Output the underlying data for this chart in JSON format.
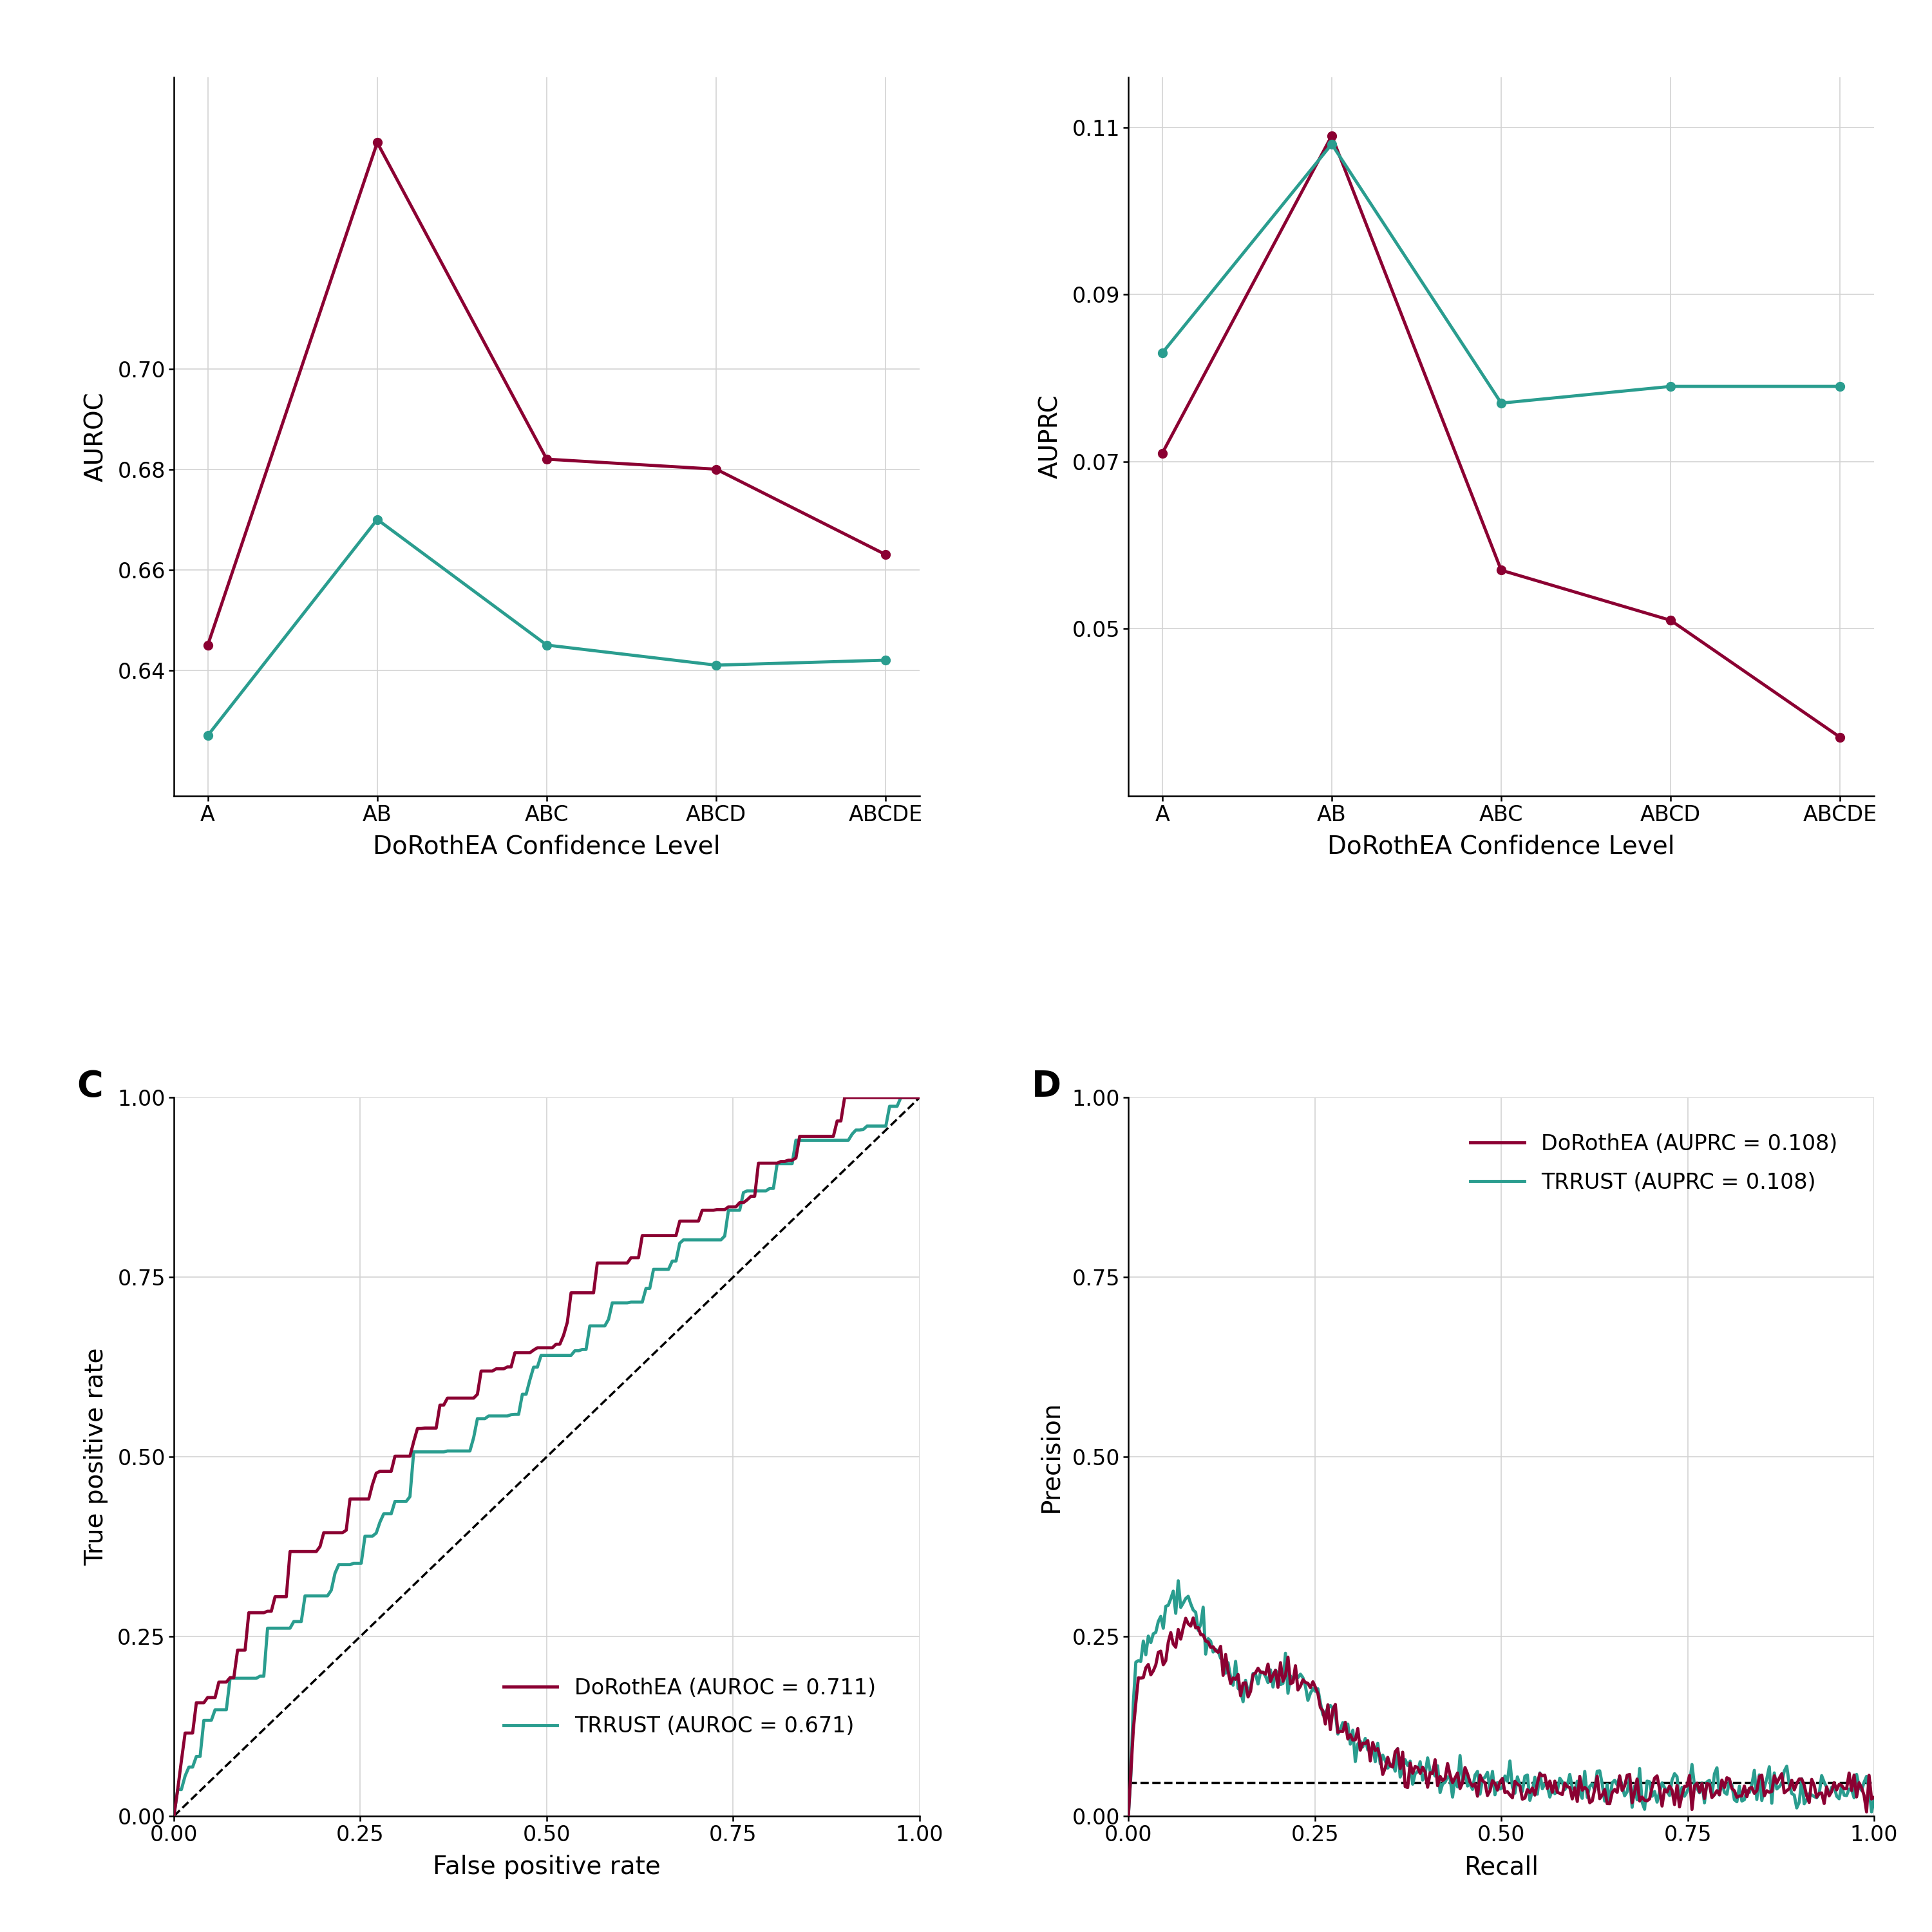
{
  "panel_A": {
    "categories": [
      "A",
      "AB",
      "ABC",
      "ABCD",
      "ABCDE"
    ],
    "dorothea": [
      0.645,
      0.745,
      0.682,
      0.68,
      0.663
    ],
    "trrust": [
      0.627,
      0.67,
      0.645,
      0.641,
      0.642
    ],
    "ylabel": "AUROC",
    "xlabel": "DoRothEA Confidence Level",
    "ylim": [
      0.615,
      0.758
    ],
    "yticks": [
      0.64,
      0.66,
      0.68,
      0.7
    ]
  },
  "panel_B": {
    "categories": [
      "A",
      "AB",
      "ABC",
      "ABCD",
      "ABCDE"
    ],
    "dorothea": [
      0.071,
      0.109,
      0.057,
      0.051,
      0.037
    ],
    "trrust": [
      0.083,
      0.108,
      0.077,
      0.079,
      0.079
    ],
    "ylabel": "AUPRC",
    "xlabel": "DoRothEA Confidence Level",
    "ylim": [
      0.03,
      0.116
    ],
    "yticks": [
      0.05,
      0.07,
      0.09,
      0.11
    ]
  },
  "panel_C": {
    "xlabel": "False positive rate",
    "ylabel": "True positive rate",
    "dorothea_auroc": 0.711,
    "trrust_auroc": 0.671,
    "legend_label_dorothea": "DoRothEA (AUROC = 0.711)",
    "legend_label_trrust": "TRRUST (AUROC = 0.671)"
  },
  "panel_D": {
    "xlabel": "Recall",
    "ylabel": "Precision",
    "dorothea_auprc": 0.108,
    "trrust_auprc": 0.108,
    "random_baseline": 0.047,
    "legend_label_dorothea": "DoRothEA (AUPRC = 0.108)",
    "legend_label_trrust": "TRRUST (AUPRC = 0.108)"
  },
  "colors": {
    "dorothea": "#8B0032",
    "trrust": "#2A9D8F"
  },
  "label_fontsize": 28,
  "tick_fontsize": 24,
  "legend_fontsize": 24,
  "panel_label_fontsize": 40,
  "line_width": 3.5,
  "marker_size": 10
}
